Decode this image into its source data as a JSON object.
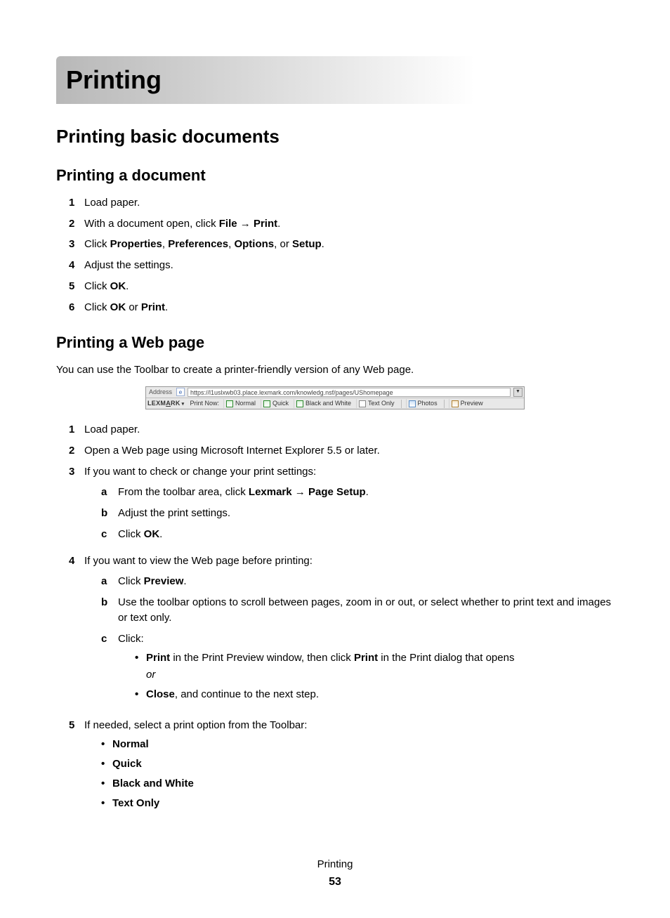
{
  "chapter_title": "Printing",
  "section_title": "Printing basic documents",
  "sub1": {
    "title": "Printing a document",
    "steps": {
      "s1": "Load paper.",
      "s2_pre": "With a document open, click ",
      "s2_b1": "File",
      "s2_arrow": " → ",
      "s2_b2": "Print",
      "s2_post": ".",
      "s3_pre": "Click ",
      "s3_b1": "Properties",
      "s3_sep1": ", ",
      "s3_b2": "Preferences",
      "s3_sep2": ", ",
      "s3_b3": "Options",
      "s3_sep3": ", or ",
      "s3_b4": "Setup",
      "s3_post": ".",
      "s4": "Adjust the settings.",
      "s5_pre": "Click ",
      "s5_b1": "OK",
      "s5_post": ".",
      "s6_pre": "Click ",
      "s6_b1": "OK",
      "s6_mid": " or ",
      "s6_b2": "Print",
      "s6_post": "."
    }
  },
  "sub2": {
    "title": "Printing a Web page",
    "intro": "You can use the Toolbar to create a printer-friendly version of any Web page.",
    "toolbar": {
      "address_label": "Address",
      "url": "https://l1uslxwb03.place.lexmark.com/knowledg.nsf/pages/UShomepage",
      "brand_pre": "LEXM",
      "brand_u": "A",
      "brand_post": "RK",
      "print_now": "Print Now:",
      "normal": "Normal",
      "quick": "Quick",
      "bw": "Black and White",
      "text_only": "Text Only",
      "photos": "Photos",
      "preview": "Preview"
    },
    "steps": {
      "s1": "Load paper.",
      "s2": "Open a Web page using Microsoft Internet Explorer 5.5 or later.",
      "s3": "If you want to check or change your print settings:",
      "s3a_pre": "From the toolbar area, click ",
      "s3a_b1": "Lexmark",
      "s3a_arrow": " → ",
      "s3a_b2": "Page Setup",
      "s3a_post": ".",
      "s3b": "Adjust the print settings.",
      "s3c_pre": "Click ",
      "s3c_b1": "OK",
      "s3c_post": ".",
      "s4": "If you want to view the Web page before printing:",
      "s4a_pre": "Click ",
      "s4a_b1": "Preview",
      "s4a_post": ".",
      "s4b": "Use the toolbar options to scroll between pages, zoom in or out, or select whether to print text and images or text only.",
      "s4c": "Click:",
      "s4c_b1_b1": "Print",
      "s4c_b1_mid": " in the Print Preview window, then click ",
      "s4c_b1_b2": "Print",
      "s4c_b1_post": " in the Print dialog that opens",
      "s4c_b1_or": "or",
      "s4c_b2_b1": "Close",
      "s4c_b2_post": ", and continue to the next step.",
      "s5": "If needed, select a print option from the Toolbar:",
      "s5_opts": {
        "o1": "Normal",
        "o2": "Quick",
        "o3": "Black and White",
        "o4": "Text Only"
      }
    }
  },
  "footer": {
    "title": "Printing",
    "page": "53"
  }
}
